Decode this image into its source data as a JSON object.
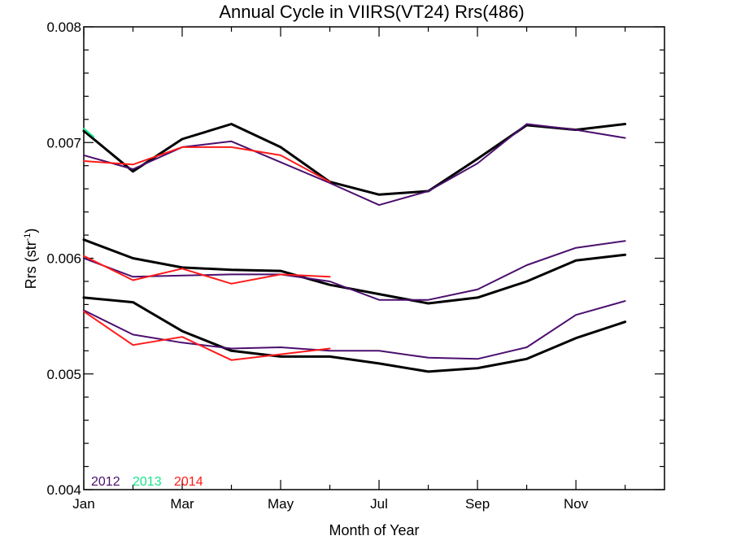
{
  "chart_data": {
    "type": "line",
    "title": "Annual Cycle in VIIRS(VT24) Rrs(486)",
    "xlabel": "Month of Year",
    "ylabel_main": "Rrs (str",
    "ylabel_sup": "-1",
    "ylabel_end": ")",
    "xlim": [
      1,
      12.8
    ],
    "ylim": [
      0.004,
      0.008
    ],
    "x_ticks": [
      {
        "x": 1,
        "label": "Jan"
      },
      {
        "x": 3,
        "label": "Mar"
      },
      {
        "x": 5,
        "label": "May"
      },
      {
        "x": 7,
        "label": "Jul"
      },
      {
        "x": 9,
        "label": "Sep"
      },
      {
        "x": 11,
        "label": "Nov"
      }
    ],
    "x_minor": [
      2,
      4,
      6,
      8,
      10,
      12
    ],
    "y_ticks": [
      {
        "y": 0.004,
        "label": "0.004"
      },
      {
        "y": 0.005,
        "label": "0.005"
      },
      {
        "y": 0.006,
        "label": "0.006"
      },
      {
        "y": 0.007,
        "label": "0.007"
      },
      {
        "y": 0.008,
        "label": "0.008"
      }
    ],
    "y_minor_step": 0.0002,
    "grid": false,
    "legend": {
      "placement": "bottom-left",
      "entries": [
        {
          "label": "2012",
          "color": "#4b0f6e"
        },
        {
          "label": "2013",
          "color": "#19e68a"
        },
        {
          "label": "2014",
          "color": "#ff1a1a"
        }
      ]
    },
    "series": [
      {
        "group": "climatology",
        "color": "#000000",
        "width": 3,
        "x": [
          1,
          2,
          3,
          4,
          5,
          6,
          7,
          8,
          9,
          10,
          11,
          12
        ],
        "y": [
          0.0071,
          0.00675,
          0.00703,
          0.00716,
          0.00696,
          0.00666,
          0.00655,
          0.00658,
          0.00686,
          0.00715,
          0.00711,
          0.00716
        ]
      },
      {
        "group": "climatology",
        "color": "#000000",
        "width": 3,
        "x": [
          1,
          2,
          3,
          4,
          5,
          6,
          7,
          8,
          9,
          10,
          11,
          12
        ],
        "y": [
          0.00616,
          0.006,
          0.00592,
          0.0059,
          0.00589,
          0.00577,
          0.00569,
          0.00561,
          0.00566,
          0.0058,
          0.00598,
          0.00603
        ]
      },
      {
        "group": "climatology",
        "color": "#000000",
        "width": 3,
        "x": [
          1,
          2,
          3,
          4,
          5,
          6,
          7,
          8,
          9,
          10,
          11,
          12
        ],
        "y": [
          0.00566,
          0.00562,
          0.00537,
          0.0052,
          0.00515,
          0.00515,
          0.00509,
          0.00502,
          0.00505,
          0.00513,
          0.00531,
          0.00545
        ]
      },
      {
        "group": "2012",
        "color": "#4b0f6e",
        "width": 2,
        "x": [
          1,
          2,
          3,
          4,
          5,
          6,
          7,
          8,
          9,
          10,
          11,
          12
        ],
        "y": [
          0.00689,
          0.00677,
          0.00696,
          0.00701,
          0.00683,
          0.00665,
          0.00646,
          0.00658,
          0.00682,
          0.00716,
          0.00711,
          0.00704
        ]
      },
      {
        "group": "2012",
        "color": "#4b0f6e",
        "width": 2,
        "x": [
          1,
          2,
          3,
          4,
          5,
          6,
          7,
          8,
          9,
          10,
          11,
          12
        ],
        "y": [
          0.006,
          0.00584,
          0.00585,
          0.00586,
          0.00586,
          0.0058,
          0.00564,
          0.00564,
          0.00573,
          0.00594,
          0.00609,
          0.00615
        ]
      },
      {
        "group": "2012",
        "color": "#4b0f6e",
        "width": 2,
        "x": [
          1,
          2,
          3,
          4,
          5,
          6,
          7,
          8,
          9,
          10,
          11,
          12
        ],
        "y": [
          0.00555,
          0.00534,
          0.00527,
          0.00522,
          0.00523,
          0.0052,
          0.0052,
          0.00514,
          0.00513,
          0.00523,
          0.00551,
          0.00563
        ]
      },
      {
        "group": "2013",
        "color": "#19e68a",
        "width": 2,
        "x": [
          1,
          1.2
        ],
        "y": [
          0.00712,
          0.00705
        ]
      },
      {
        "group": "2014",
        "color": "#ff1a1a",
        "width": 2,
        "x": [
          1,
          2,
          3,
          4,
          5,
          6
        ],
        "y": [
          0.00684,
          0.00681,
          0.00696,
          0.00696,
          0.00689,
          0.00666
        ]
      },
      {
        "group": "2014",
        "color": "#ff1a1a",
        "width": 2,
        "x": [
          1,
          2,
          3,
          4,
          5,
          6
        ],
        "y": [
          0.00602,
          0.00581,
          0.00591,
          0.00578,
          0.00586,
          0.00584
        ]
      },
      {
        "group": "2014",
        "color": "#ff1a1a",
        "width": 2,
        "x": [
          1,
          2,
          3,
          4,
          5,
          6
        ],
        "y": [
          0.00554,
          0.00525,
          0.00532,
          0.00512,
          0.00517,
          0.00522
        ]
      }
    ]
  }
}
